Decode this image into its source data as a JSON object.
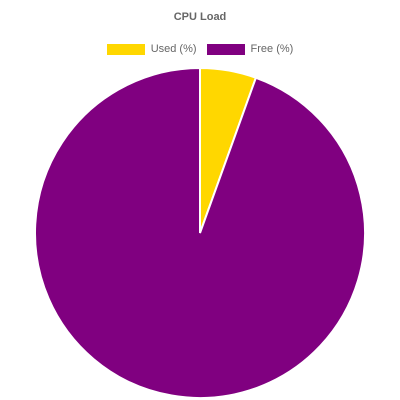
{
  "chart_data": {
    "type": "pie",
    "title": "CPU Load",
    "legend_position": "top",
    "slices": [
      {
        "label": "Used (%)",
        "value": 5.5,
        "color": "#FFD700"
      },
      {
        "label": "Free (%)",
        "value": 94.5,
        "color": "#800080"
      }
    ]
  }
}
